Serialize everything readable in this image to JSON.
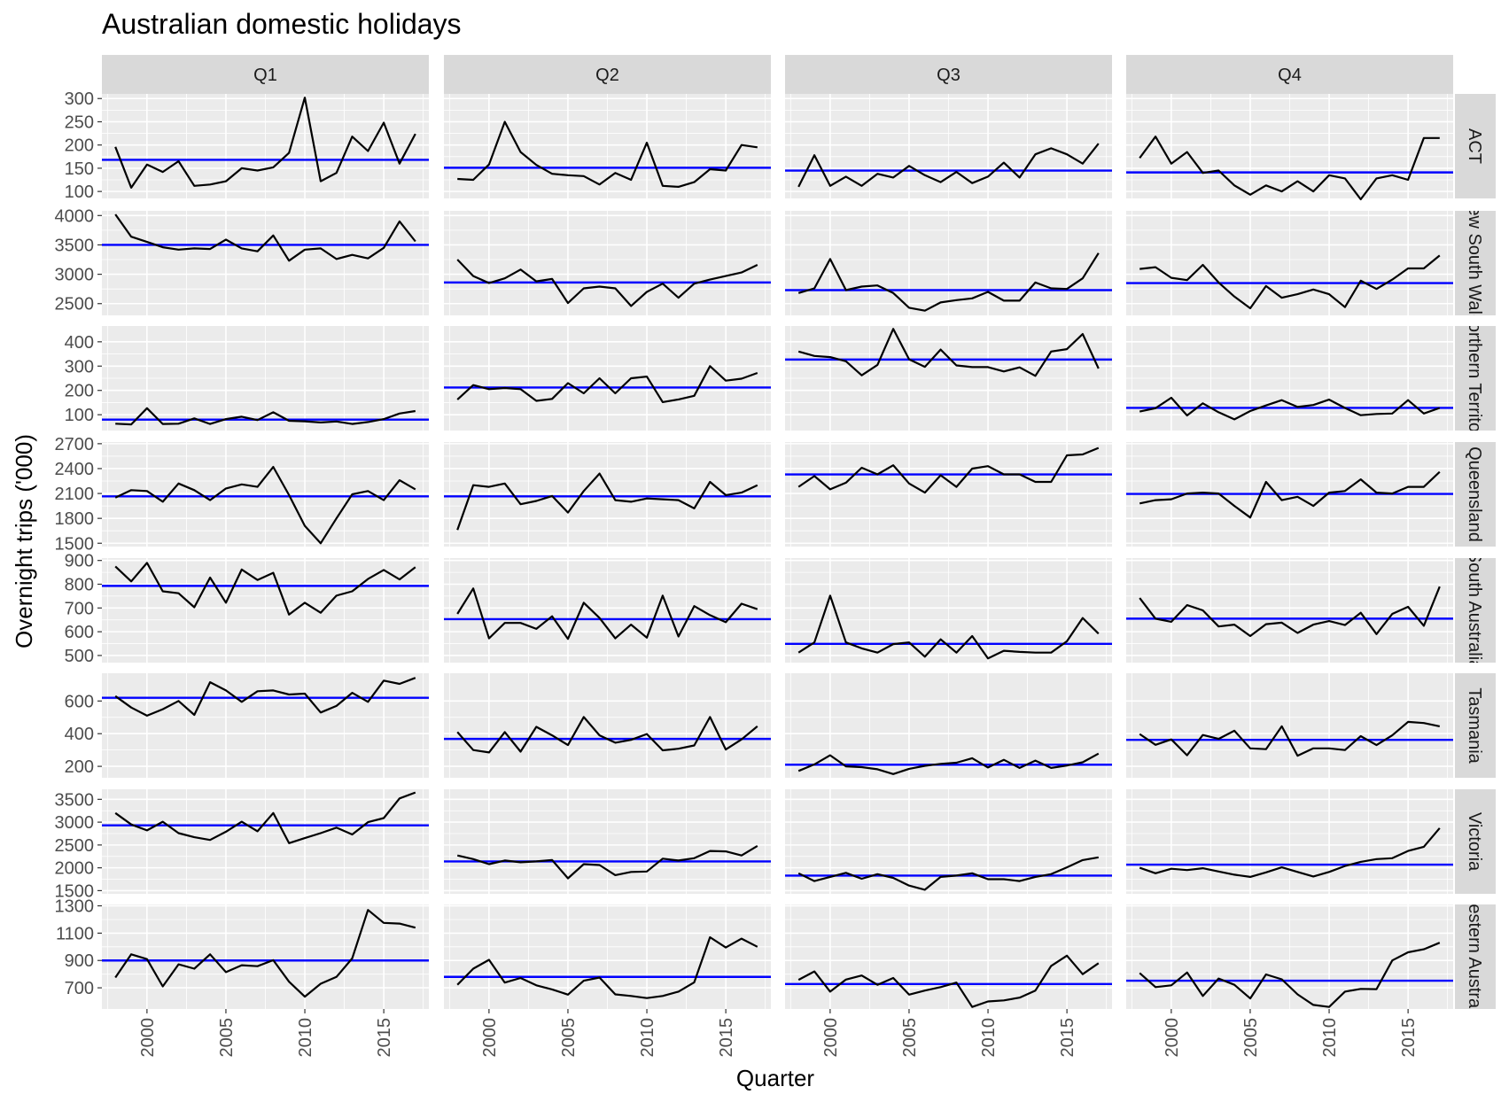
{
  "chart_data": {
    "type": "line",
    "title": "Australian domestic holidays",
    "xlabel": "Quarter",
    "ylabel": "Overnight trips ('000)",
    "x_range": [
      1998,
      2017
    ],
    "x_ticks": [
      2000,
      2005,
      2010,
      2015
    ],
    "x_tick_labels": [
      "2000",
      "2005",
      "2010",
      "2015"
    ],
    "columns": [
      "Q1",
      "Q2",
      "Q3",
      "Q4"
    ],
    "colors": {
      "series": "#000000",
      "mean": "#0000ff",
      "panel": "#ebebeb",
      "strip": "#d9d9d9"
    },
    "grid": true,
    "rows": [
      {
        "name": "ACT",
        "strip_label": "ACT",
        "ylim": [
          85,
          310
        ],
        "yticks": [
          100,
          150,
          200,
          250,
          300
        ],
        "ytick_labels": [
          "100",
          "150",
          "200",
          "250",
          "300"
        ],
        "means": [
          168,
          151,
          145,
          141
        ],
        "series": [
          [
            196,
            108,
            158,
            142,
            165,
            112,
            115,
            122,
            150,
            145,
            152,
            183,
            302,
            122,
            140,
            218,
            187,
            248,
            160,
            224
          ],
          [
            127,
            125,
            158,
            250,
            185,
            157,
            138,
            135,
            133,
            115,
            140,
            125,
            205,
            112,
            110,
            120,
            148,
            145,
            200,
            195
          ],
          [
            110,
            178,
            112,
            132,
            112,
            138,
            130,
            155,
            135,
            120,
            142,
            118,
            132,
            162,
            130,
            180,
            193,
            180,
            160,
            203
          ],
          [
            172,
            218,
            160,
            185,
            140,
            145,
            113,
            93,
            113,
            100,
            122,
            100,
            135,
            128,
            83,
            128,
            135,
            125,
            215,
            215
          ]
        ]
      },
      {
        "name": "New South Wales",
        "strip_label": "New South Wales",
        "ylim": [
          2300,
          4080
        ],
        "yticks": [
          2500,
          3000,
          3500,
          4000
        ],
        "ytick_labels": [
          "2500",
          "3000",
          "3500",
          "4000"
        ],
        "means": [
          3500,
          2860,
          2730,
          2850
        ],
        "series": [
          [
            4020,
            3640,
            3550,
            3460,
            3420,
            3440,
            3430,
            3590,
            3440,
            3390,
            3660,
            3230,
            3420,
            3440,
            3260,
            3330,
            3270,
            3450,
            3900,
            3560
          ],
          [
            3250,
            2970,
            2850,
            2930,
            3080,
            2880,
            2920,
            2510,
            2760,
            2790,
            2760,
            2460,
            2700,
            2840,
            2600,
            2840,
            2910,
            2970,
            3030,
            3160
          ],
          [
            2680,
            2760,
            3260,
            2730,
            2790,
            2810,
            2680,
            2430,
            2380,
            2520,
            2560,
            2590,
            2700,
            2550,
            2550,
            2860,
            2760,
            2750,
            2930,
            3360
          ],
          [
            3090,
            3120,
            2940,
            2900,
            3160,
            2860,
            2620,
            2420,
            2800,
            2600,
            2660,
            2740,
            2660,
            2440,
            2890,
            2750,
            2910,
            3100,
            3100,
            3320
          ]
        ]
      },
      {
        "name": "Northern Territory",
        "strip_label": "Northern Territory",
        "ylim": [
          35,
          465
        ],
        "yticks": [
          100,
          200,
          300,
          400
        ],
        "ytick_labels": [
          "100",
          "200",
          "300",
          "400"
        ],
        "means": [
          80,
          212,
          327,
          128
        ],
        "series": [
          [
            63,
            60,
            127,
            62,
            63,
            85,
            62,
            82,
            92,
            78,
            110,
            75,
            73,
            68,
            72,
            62,
            70,
            82,
            105,
            115
          ],
          [
            162,
            222,
            205,
            210,
            205,
            157,
            165,
            230,
            188,
            250,
            188,
            250,
            257,
            152,
            163,
            178,
            300,
            240,
            248,
            272
          ],
          [
            360,
            342,
            337,
            320,
            262,
            305,
            453,
            328,
            297,
            368,
            303,
            296,
            296,
            278,
            295,
            260,
            360,
            370,
            432,
            290
          ],
          [
            113,
            127,
            170,
            97,
            147,
            110,
            81,
            115,
            138,
            160,
            132,
            140,
            162,
            128,
            98,
            103,
            105,
            160,
            105,
            128
          ]
        ]
      },
      {
        "name": "Queensland",
        "strip_label": "Queensland",
        "ylim": [
          1460,
          2720
        ],
        "yticks": [
          1500,
          1800,
          2100,
          2400,
          2700
        ],
        "ytick_labels": [
          "1500",
          "1800",
          "2100",
          "2400",
          "2700"
        ],
        "means": [
          2065,
          2065,
          2330,
          2095
        ],
        "series": [
          [
            2050,
            2140,
            2130,
            2000,
            2220,
            2140,
            2020,
            2160,
            2210,
            2180,
            2420,
            2080,
            1710,
            1500,
            1800,
            2090,
            2130,
            2020,
            2260,
            2150
          ],
          [
            1660,
            2200,
            2180,
            2220,
            1970,
            2010,
            2070,
            1870,
            2130,
            2340,
            2020,
            2000,
            2040,
            2030,
            2020,
            1920,
            2240,
            2080,
            2110,
            2200
          ],
          [
            2180,
            2310,
            2150,
            2230,
            2410,
            2330,
            2440,
            2220,
            2110,
            2320,
            2180,
            2400,
            2430,
            2330,
            2330,
            2240,
            2240,
            2560,
            2570,
            2650
          ],
          [
            1980,
            2020,
            2030,
            2100,
            2110,
            2100,
            1950,
            1810,
            2240,
            2020,
            2060,
            1950,
            2110,
            2130,
            2270,
            2110,
            2100,
            2180,
            2180,
            2360
          ]
        ]
      },
      {
        "name": "South Australia",
        "strip_label": "South Australia",
        "ylim": [
          470,
          910
        ],
        "yticks": [
          500,
          600,
          700,
          800,
          900
        ],
        "ytick_labels": [
          "500",
          "600",
          "700",
          "800",
          "900"
        ],
        "means": [
          793,
          653,
          549,
          655
        ],
        "series": [
          [
            875,
            812,
            890,
            770,
            762,
            703,
            828,
            722,
            862,
            818,
            848,
            672,
            722,
            680,
            752,
            770,
            822,
            860,
            820,
            872
          ],
          [
            675,
            782,
            572,
            637,
            637,
            612,
            665,
            570,
            722,
            658,
            572,
            630,
            575,
            752,
            580,
            708,
            670,
            640,
            718,
            695
          ],
          [
            512,
            555,
            752,
            555,
            530,
            512,
            548,
            555,
            495,
            568,
            512,
            582,
            488,
            520,
            515,
            512,
            512,
            560,
            658,
            592
          ],
          [
            742,
            655,
            642,
            712,
            690,
            622,
            630,
            582,
            632,
            638,
            595,
            630,
            645,
            628,
            680,
            590,
            675,
            705,
            625,
            790
          ]
        ]
      },
      {
        "name": "Tasmania",
        "strip_label": "Tasmania",
        "ylim": [
          130,
          770
        ],
        "yticks": [
          200,
          400,
          600
        ],
        "ytick_labels": [
          "200",
          "400",
          "600"
        ],
        "means": [
          620,
          368,
          210,
          362
        ],
        "series": [
          [
            630,
            560,
            510,
            550,
            600,
            515,
            715,
            665,
            595,
            660,
            665,
            640,
            645,
            530,
            570,
            650,
            595,
            725,
            705,
            742
          ],
          [
            410,
            300,
            285,
            410,
            290,
            442,
            390,
            330,
            502,
            390,
            345,
            362,
            398,
            298,
            308,
            328,
            502,
            303,
            365,
            445
          ],
          [
            172,
            212,
            268,
            200,
            195,
            182,
            153,
            185,
            203,
            215,
            222,
            250,
            193,
            240,
            190,
            235,
            190,
            205,
            225,
            278
          ],
          [
            398,
            332,
            365,
            268,
            392,
            368,
            418,
            310,
            305,
            445,
            265,
            310,
            310,
            300,
            385,
            330,
            390,
            472,
            465,
            445
          ]
        ]
      },
      {
        "name": "Victoria",
        "strip_label": "Victoria",
        "ylim": [
          1430,
          3720
        ],
        "yticks": [
          1500,
          2000,
          2500,
          3000,
          3500
        ],
        "ytick_labels": [
          "1500",
          "2000",
          "2500",
          "3000",
          "3500"
        ],
        "means": [
          2930,
          2140,
          1830,
          2070
        ],
        "series": [
          [
            3200,
            2950,
            2820,
            3010,
            2760,
            2670,
            2610,
            2790,
            3010,
            2800,
            3200,
            2540,
            2650,
            2760,
            2880,
            2730,
            3000,
            3090,
            3520,
            3650
          ],
          [
            2270,
            2190,
            2080,
            2160,
            2120,
            2140,
            2170,
            1770,
            2080,
            2060,
            1840,
            1910,
            1920,
            2200,
            2160,
            2210,
            2370,
            2360,
            2270,
            2480
          ],
          [
            1880,
            1710,
            1800,
            1890,
            1760,
            1860,
            1780,
            1610,
            1520,
            1800,
            1830,
            1880,
            1750,
            1750,
            1710,
            1800,
            1860,
            2010,
            2170,
            2230
          ],
          [
            2000,
            1880,
            1980,
            1950,
            1990,
            1920,
            1850,
            1800,
            1900,
            2010,
            1910,
            1810,
            1910,
            2040,
            2130,
            2190,
            2210,
            2370,
            2460,
            2870
          ]
        ]
      },
      {
        "name": "Western Australia",
        "strip_label": "Western Australia",
        "ylim": [
          545,
          1310
        ],
        "yticks": [
          700,
          900,
          1100,
          1300
        ],
        "ytick_labels": [
          "700",
          "900",
          "1100",
          "1300"
        ],
        "means": [
          900,
          780,
          728,
          752
        ],
        "series": [
          [
            775,
            945,
            910,
            710,
            872,
            840,
            945,
            815,
            865,
            858,
            902,
            745,
            635,
            730,
            780,
            915,
            1270,
            1175,
            1170,
            1140
          ],
          [
            722,
            840,
            905,
            738,
            772,
            718,
            688,
            650,
            752,
            775,
            652,
            640,
            625,
            640,
            672,
            740,
            1070,
            995,
            1060,
            1000
          ],
          [
            758,
            820,
            672,
            760,
            790,
            722,
            772,
            650,
            680,
            705,
            738,
            560,
            600,
            608,
            628,
            680,
            860,
            935,
            800,
            880
          ],
          [
            808,
            705,
            718,
            812,
            640,
            768,
            722,
            622,
            798,
            762,
            652,
            575,
            560,
            672,
            692,
            690,
            900,
            960,
            982,
            1030
          ]
        ]
      }
    ]
  }
}
